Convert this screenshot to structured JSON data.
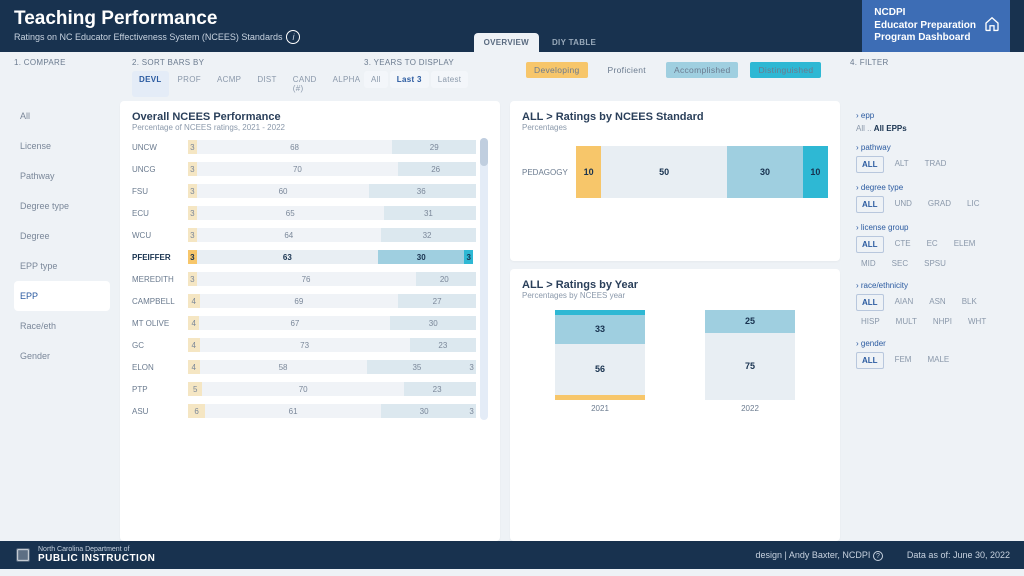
{
  "colors": {
    "developing": "#f7c66a",
    "proficient": "#e8eef3",
    "accomplished": "#9fcfe0",
    "distinguished": "#2eb8d4",
    "proficient_muted": "#f0f3f7",
    "accomplished_muted": "#dce8ef",
    "developing_muted": "#f5e6c3"
  },
  "header": {
    "title": "Teaching Performance",
    "subtitle": "Ratings on NC Educator Effectiveness System (NCEES) Standards",
    "tab_overview": "OVERVIEW",
    "tab_diy": "DIY TABLE",
    "brand_line1": "NCDPI",
    "brand_line2": "Educator Preparation",
    "brand_line3": "Program Dashboard"
  },
  "controls": {
    "c1": "1. COMPARE",
    "c2": "2. SORT BARS BY",
    "c3": "3. YEARS TO DISPLAY",
    "c4": "4. FILTER",
    "sort_options": [
      "DEVL",
      "PROF",
      "ACMP",
      "DIST",
      "CAND (#)",
      "ALPHA"
    ],
    "year_options": [
      "All",
      "Last 3",
      "Latest"
    ],
    "sort_active_index": 0,
    "year_active_index": 1
  },
  "legend": {
    "developing": "Developing",
    "proficient": "Proficient",
    "accomplished": "Accomplished",
    "distinguished": "Distinguished"
  },
  "sidebar": {
    "items": [
      "All",
      "License",
      "Pathway",
      "Degree type",
      "Degree",
      "EPP type",
      "EPP",
      "Race/eth",
      "Gender"
    ],
    "selected_index": 6
  },
  "overall": {
    "title": "Overall NCEES Performance",
    "subtitle": "Percentage of NCEES ratings, 2021 - 2022",
    "rows": [
      {
        "label": "UNCW",
        "dev": 3,
        "prof": 68,
        "acmp": 29,
        "dist": 0,
        "hl": false
      },
      {
        "label": "UNCG",
        "dev": 3,
        "prof": 70,
        "acmp": 26,
        "dist": 1,
        "hl": false
      },
      {
        "label": "FSU",
        "dev": 3,
        "prof": 60,
        "acmp": 36,
        "dist": 1,
        "hl": false
      },
      {
        "label": "ECU",
        "dev": 3,
        "prof": 65,
        "acmp": 31,
        "dist": 1,
        "hl": false
      },
      {
        "label": "WCU",
        "dev": 3,
        "prof": 64,
        "acmp": 32,
        "dist": 1,
        "hl": false
      },
      {
        "label": "PFEIFFER",
        "dev": 3,
        "prof": 63,
        "acmp": 30,
        "dist": 3,
        "hl": true
      },
      {
        "label": "MEREDITH",
        "dev": 3,
        "prof": 76,
        "acmp": 20,
        "dist": 1,
        "hl": false
      },
      {
        "label": "CAMPBELL",
        "dev": 4,
        "prof": 69,
        "acmp": 27,
        "dist": 0,
        "hl": false
      },
      {
        "label": "MT OLIVE",
        "dev": 4,
        "prof": 67,
        "acmp": 30,
        "dist": 0,
        "hl": false
      },
      {
        "label": "GC",
        "dev": 4,
        "prof": 73,
        "acmp": 23,
        "dist": 0,
        "hl": false
      },
      {
        "label": "ELON",
        "dev": 4,
        "prof": 58,
        "acmp": 35,
        "dist": 3,
        "hl": false
      },
      {
        "label": "PTP",
        "dev": 5,
        "prof": 70,
        "acmp": 23,
        "dist": 2,
        "hl": false
      },
      {
        "label": "ASU",
        "dev": 6,
        "prof": 61,
        "acmp": 30,
        "dist": 3,
        "hl": false
      }
    ]
  },
  "standard": {
    "title": "ALL > Ratings by NCEES Standard",
    "subtitle": "Percentages",
    "row_label": "PEDAGOGY",
    "dev": 10,
    "prof": 50,
    "acmp": 30,
    "dist": 10
  },
  "by_year": {
    "title": "ALL > Ratings by Year",
    "subtitle": "Percentages by NCEES year",
    "years": [
      {
        "year": "2021",
        "dev": 6,
        "prof": 56,
        "acmp": 33,
        "dist": 5
      },
      {
        "year": "2022",
        "dev": 0,
        "prof": 75,
        "acmp": 25,
        "dist": 0
      }
    ]
  },
  "filters": {
    "epp": {
      "title": "epp",
      "prefix": "All ..",
      "value": "All EPPs"
    },
    "pathway": {
      "title": "pathway",
      "opts": [
        "ALL",
        "ALT",
        "TRAD"
      ],
      "sel": 0
    },
    "degree_type": {
      "title": "degree type",
      "opts": [
        "ALL",
        "UND",
        "GRAD",
        "LIC"
      ],
      "sel": 0
    },
    "license_group": {
      "title": "license group",
      "opts": [
        "ALL",
        "CTE",
        "EC",
        "ELEM",
        "MID",
        "SEC",
        "SPSU"
      ],
      "sel": 0
    },
    "race": {
      "title": "race/ethnicity",
      "opts": [
        "ALL",
        "AIAN",
        "ASN",
        "BLK",
        "HISP",
        "MULT",
        "NHPI",
        "WHT"
      ],
      "sel": 0
    },
    "gender": {
      "title": "gender",
      "opts": [
        "ALL",
        "FEM",
        "MALE"
      ],
      "sel": 0
    }
  },
  "footer": {
    "dept_line1": "North Carolina Department of",
    "dept_line2": "PUBLIC INSTRUCTION",
    "design": "design | Andy Baxter, NCDPI",
    "asof": "Data as of:  June 30, 2022"
  }
}
